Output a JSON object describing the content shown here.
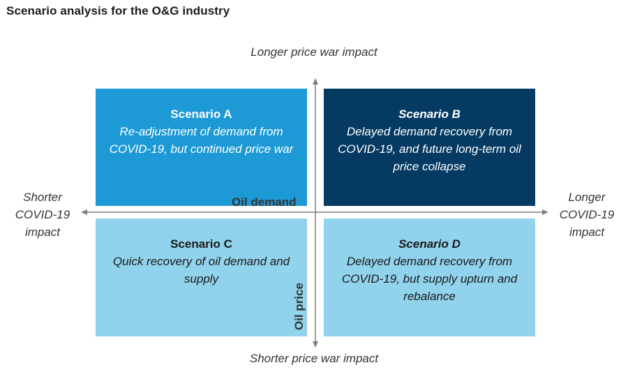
{
  "title": "Scenario analysis for the O&G industry",
  "axes": {
    "top": "Longer price war impact",
    "bottom": "Shorter price war impact",
    "left": "Shorter COVID-19 impact",
    "right": "Longer COVID-19 impact",
    "horizontal_name": "Oil demand",
    "vertical_name": "Oil price"
  },
  "quadrants": [
    {
      "title": "Scenario A",
      "description": "Re-adjustment of demand from COVID-19, but continued price war",
      "color": "#1d9ad6"
    },
    {
      "title": "Scenario B",
      "description": "Delayed demand recovery from COVID-19, and future long-term oil price collapse",
      "color": "#053a63"
    },
    {
      "title": "Scenario C",
      "description": "Quick recovery of oil demand and supply",
      "color": "#91d2ec"
    },
    {
      "title": "Scenario D",
      "description": "Delayed demand recovery from COVID-19, but supply upturn and rebalance",
      "color": "#91d2ec"
    }
  ]
}
